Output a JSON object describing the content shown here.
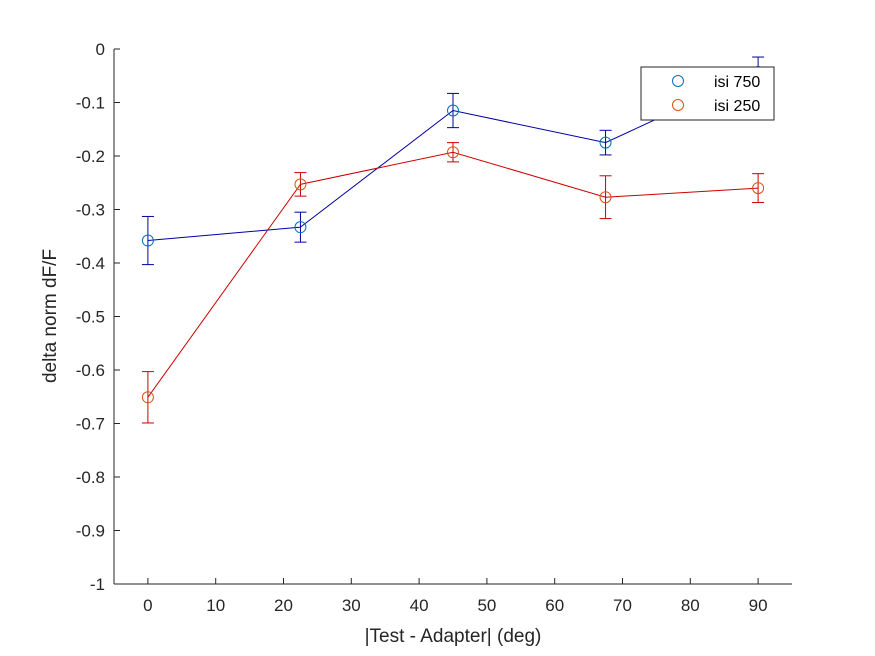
{
  "chart_data": {
    "type": "line",
    "xlabel": "|Test - Adapter| (deg)",
    "ylabel": "delta norm dF/F",
    "xlim": [
      -5,
      95
    ],
    "ylim": [
      -1,
      0
    ],
    "xticks": [
      0,
      10,
      20,
      30,
      40,
      50,
      60,
      70,
      80,
      90
    ],
    "yticks": [
      0,
      -0.1,
      -0.2,
      -0.3,
      -0.4,
      -0.5,
      -0.6,
      -0.7,
      -0.8,
      -0.9,
      -1
    ],
    "xtick_labels": [
      "0",
      "10",
      "20",
      "30",
      "40",
      "50",
      "60",
      "70",
      "80",
      "90"
    ],
    "ytick_labels": [
      "0",
      "-0.1",
      "-0.2",
      "-0.3",
      "-0.4",
      "-0.5",
      "-0.6",
      "-0.7",
      "-0.8",
      "-0.9",
      "-1"
    ],
    "x": [
      0,
      22.5,
      45,
      67.5,
      90
    ],
    "series": [
      {
        "name": "isi 750",
        "values": [
          -0.358,
          -0.333,
          -0.115,
          -0.175,
          -0.043
        ],
        "errors": [
          0.045,
          0.028,
          0.032,
          0.023,
          0.028
        ],
        "line_color": "#0000a8",
        "marker_color": "#0072bd"
      },
      {
        "name": "isi 250",
        "values": [
          -0.651,
          -0.253,
          -0.193,
          -0.277,
          -0.26
        ],
        "errors": [
          0.048,
          0.022,
          0.018,
          0.04,
          0.027
        ],
        "line_color": "#cc0000",
        "marker_color": "#d95319"
      }
    ],
    "legend": {
      "position": "top-right"
    },
    "grid": false
  }
}
